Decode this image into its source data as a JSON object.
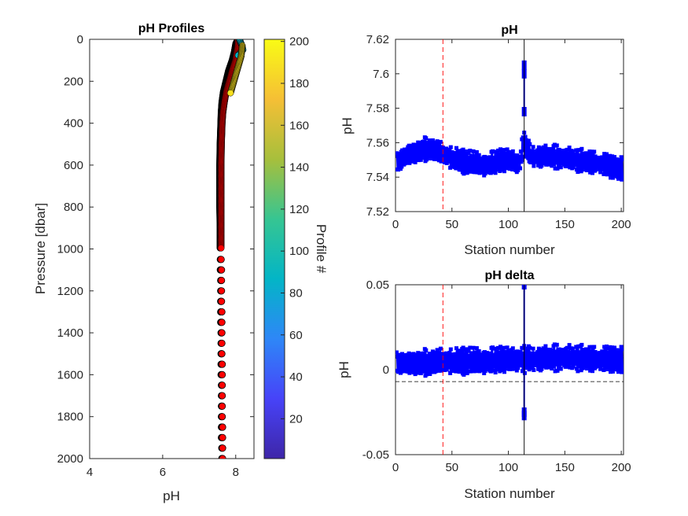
{
  "chart_data": [
    {
      "type": "scatter",
      "title": "pH Profiles",
      "xlabel": "pH",
      "ylabel": "Pressure [dbar]",
      "xlim": [
        4,
        8.5
      ],
      "ylim": [
        0,
        2000
      ],
      "y_reversed": true,
      "xticks": [
        4,
        6,
        8
      ],
      "yticks": [
        0,
        200,
        400,
        600,
        800,
        1000,
        1200,
        1400,
        1600,
        1800,
        2000
      ],
      "colorbar": {
        "label": "Profile #",
        "ticks": [
          20,
          40,
          60,
          80,
          100,
          120,
          140,
          160,
          180,
          200
        ],
        "range": [
          1,
          201
        ],
        "colormap": [
          "#3e26a8",
          "#4743f8",
          "#2e87f7",
          "#03b5c6",
          "#36c592",
          "#a7bf3c",
          "#f5bf35",
          "#f9fb15"
        ]
      },
      "series": [
        {
          "color": "#000000",
          "profile": {
            "pressure": [
              0,
              10,
              20,
              40,
              60,
              80,
              100,
              150,
              200,
              250,
              300,
              350,
              400,
              500,
              600,
              700,
              800,
              900,
              1000
            ],
            "ph": [
              8.05,
              8.03,
              8.0,
              7.98,
              7.96,
              7.93,
              7.9,
              7.8,
              7.73,
              7.66,
              7.62,
              7.6,
              7.59,
              7.57,
              7.56,
              7.56,
              7.56,
              7.57,
              7.57
            ]
          },
          "deep": {
            "pressure": [
              1050,
              1100,
              1150,
              1200,
              1250,
              1300,
              1350,
              1400,
              1450,
              1500,
              1550,
              1600,
              1650,
              1700,
              1750,
              1800,
              1850,
              1900,
              1950,
              2000
            ],
            "ph": [
              7.58,
              7.58,
              7.59,
              7.59,
              7.59,
              7.59,
              7.59,
              7.6,
              7.6,
              7.6,
              7.6,
              7.6,
              7.61,
              7.61,
              7.61,
              7.61,
              7.61,
              7.61,
              7.62,
              7.62
            ]
          }
        },
        {
          "color": "#ff0000",
          "profile": {
            "pressure": [
              0,
              10,
              20,
              40,
              60,
              80,
              100,
              150,
              200,
              250,
              300,
              350,
              400,
              500,
              600,
              700,
              800,
              900,
              1000
            ],
            "ph": [
              8.05,
              8.06,
              8.06,
              8.05,
              8.03,
              8.01,
              7.99,
              7.9,
              7.82,
              7.74,
              7.69,
              7.65,
              7.63,
              7.61,
              7.6,
              7.6,
              7.6,
              7.6,
              7.6
            ]
          },
          "deep": {
            "pressure": [
              1050,
              1100,
              1150,
              1200,
              1250,
              1300,
              1350,
              1400,
              1450,
              1500,
              1550,
              1600,
              1650,
              1700,
              1750,
              1800,
              1850,
              1900,
              1950,
              2000
            ],
            "ph": [
              7.6,
              7.61,
              7.61,
              7.61,
              7.61,
              7.62,
              7.62,
              7.62,
              7.62,
              7.62,
              7.63,
              7.63,
              7.63,
              7.63,
              7.63,
              7.63,
              7.64,
              7.64,
              7.64,
              7.64
            ]
          }
        },
        {
          "color": "#00b4c8",
          "profile": {
            "pressure": [
              0,
              20,
              50,
              80
            ],
            "ph": [
              8.1,
              8.15,
              8.2,
              8.05
            ]
          }
        },
        {
          "color": "#f8e020",
          "profile": {
            "pressure": [
              30,
              80,
              140,
              200,
              260
            ],
            "ph": [
              8.18,
              8.15,
              8.05,
              7.95,
              7.85
            ]
          }
        }
      ]
    },
    {
      "type": "line",
      "title": "pH",
      "xlabel": "Station number",
      "ylabel": "pH",
      "xlim": [
        0,
        202
      ],
      "ylim": [
        7.52,
        7.62
      ],
      "xticks": [
        0,
        50,
        100,
        150,
        200
      ],
      "yticks": [
        7.52,
        7.54,
        7.56,
        7.58,
        7.6,
        7.62
      ],
      "yticklabels": [
        "7.52",
        "7.54",
        "7.56",
        "7.58",
        "7.6",
        "7.62"
      ],
      "series_color": "#0000ff",
      "base": [
        [
          0,
          7.548
        ],
        [
          10,
          7.553
        ],
        [
          20,
          7.555
        ],
        [
          30,
          7.557
        ],
        [
          40,
          7.554
        ],
        [
          50,
          7.551
        ],
        [
          60,
          7.549
        ],
        [
          70,
          7.548
        ],
        [
          80,
          7.547
        ],
        [
          90,
          7.549
        ],
        [
          100,
          7.55
        ],
        [
          110,
          7.548
        ],
        [
          113,
          7.56
        ],
        [
          120,
          7.552
        ],
        [
          130,
          7.552
        ],
        [
          140,
          7.552
        ],
        [
          150,
          7.551
        ],
        [
          160,
          7.55
        ],
        [
          170,
          7.549
        ],
        [
          180,
          7.548
        ],
        [
          190,
          7.546
        ],
        [
          201,
          7.545
        ]
      ],
      "amplitude": 0.007,
      "spike": {
        "station": 114,
        "values": [
          7.578,
          7.6,
          7.605
        ]
      },
      "vlines": [
        {
          "x": 42,
          "color": "#ff0000",
          "style": "dashed"
        },
        {
          "x": 114,
          "color": "#000000",
          "style": "solid"
        }
      ]
    },
    {
      "type": "line",
      "title": "pH delta",
      "xlabel": "Station number",
      "ylabel": "pH",
      "xlim": [
        0,
        202
      ],
      "ylim": [
        -0.05,
        0.05
      ],
      "xticks": [
        0,
        50,
        100,
        150,
        200
      ],
      "yticks": [
        -0.05,
        0,
        0.05
      ],
      "yticklabels": [
        "-0.05",
        "0",
        "0.05"
      ],
      "series_color": "#0000ff",
      "base": [
        [
          0,
          0.004
        ],
        [
          20,
          0.004
        ],
        [
          40,
          0.005
        ],
        [
          60,
          0.005
        ],
        [
          80,
          0.005
        ],
        [
          100,
          0.006
        ],
        [
          120,
          0.006
        ],
        [
          140,
          0.007
        ],
        [
          160,
          0.007
        ],
        [
          180,
          0.006
        ],
        [
          201,
          0.006
        ]
      ],
      "amplitude": 0.008,
      "spike": {
        "station": 114,
        "values": [
          -0.027,
          -0.025,
          0.05
        ]
      },
      "hlines": [
        {
          "y": 0.007,
          "color": "#000000",
          "style": "solid"
        },
        {
          "y": -0.007,
          "color": "#000000",
          "style": "dashed"
        }
      ],
      "vlines": [
        {
          "x": 42,
          "color": "#ff0000",
          "style": "dashed"
        },
        {
          "x": 114,
          "color": "#000000",
          "style": "solid"
        }
      ]
    }
  ]
}
